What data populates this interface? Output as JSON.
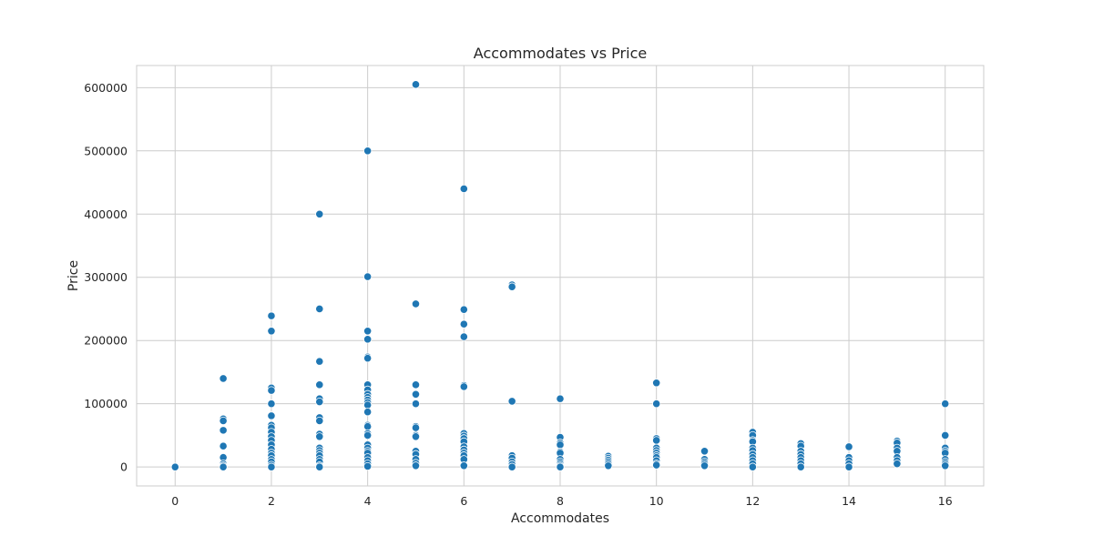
{
  "chart_data": {
    "type": "scatter",
    "title": "Accommodates vs Price",
    "xlabel": "Accommodates",
    "ylabel": "Price",
    "xlim": [
      -0.8,
      16.8
    ],
    "ylim": [
      -30000,
      635000
    ],
    "xticks": [
      0,
      2,
      4,
      6,
      8,
      10,
      12,
      14,
      16
    ],
    "yticks": [
      0,
      100000,
      200000,
      300000,
      400000,
      500000,
      600000
    ],
    "grid": true,
    "point_color": "#1f77b4",
    "series": [
      {
        "points": [
          {
            "x": 0,
            "y": 0
          },
          {
            "x": 1,
            "y": 140000
          },
          {
            "x": 1,
            "y": 76000
          },
          {
            "x": 1,
            "y": 73000
          },
          {
            "x": 1,
            "y": 58000
          },
          {
            "x": 1,
            "y": 33000
          },
          {
            "x": 1,
            "y": 16000
          },
          {
            "x": 1,
            "y": 15000
          },
          {
            "x": 1,
            "y": 5000
          },
          {
            "x": 1,
            "y": 2000
          },
          {
            "x": 1,
            "y": 0
          },
          {
            "x": 2,
            "y": 239000
          },
          {
            "x": 2,
            "y": 215000
          },
          {
            "x": 2,
            "y": 125000
          },
          {
            "x": 2,
            "y": 121000
          },
          {
            "x": 2,
            "y": 100000
          },
          {
            "x": 2,
            "y": 81000
          },
          {
            "x": 2,
            "y": 66000
          },
          {
            "x": 2,
            "y": 62000
          },
          {
            "x": 2,
            "y": 55000
          },
          {
            "x": 2,
            "y": 48000
          },
          {
            "x": 2,
            "y": 42000
          },
          {
            "x": 2,
            "y": 35000
          },
          {
            "x": 2,
            "y": 28000
          },
          {
            "x": 2,
            "y": 22000
          },
          {
            "x": 2,
            "y": 18000
          },
          {
            "x": 2,
            "y": 12000
          },
          {
            "x": 2,
            "y": 8000
          },
          {
            "x": 2,
            "y": 3000
          },
          {
            "x": 2,
            "y": 0
          },
          {
            "x": 3,
            "y": 400000
          },
          {
            "x": 3,
            "y": 250000
          },
          {
            "x": 3,
            "y": 167000
          },
          {
            "x": 3,
            "y": 130000
          },
          {
            "x": 3,
            "y": 108000
          },
          {
            "x": 3,
            "y": 103000
          },
          {
            "x": 3,
            "y": 78000
          },
          {
            "x": 3,
            "y": 73000
          },
          {
            "x": 3,
            "y": 52000
          },
          {
            "x": 3,
            "y": 48000
          },
          {
            "x": 3,
            "y": 30000
          },
          {
            "x": 3,
            "y": 26000
          },
          {
            "x": 3,
            "y": 22000
          },
          {
            "x": 3,
            "y": 18000
          },
          {
            "x": 3,
            "y": 12000
          },
          {
            "x": 3,
            "y": 8000
          },
          {
            "x": 3,
            "y": 2000
          },
          {
            "x": 3,
            "y": 0
          },
          {
            "x": 4,
            "y": 500000
          },
          {
            "x": 4,
            "y": 301000
          },
          {
            "x": 4,
            "y": 215000
          },
          {
            "x": 4,
            "y": 202000
          },
          {
            "x": 4,
            "y": 174000
          },
          {
            "x": 4,
            "y": 172000
          },
          {
            "x": 4,
            "y": 130000
          },
          {
            "x": 4,
            "y": 122000
          },
          {
            "x": 4,
            "y": 115000
          },
          {
            "x": 4,
            "y": 110000
          },
          {
            "x": 4,
            "y": 106000
          },
          {
            "x": 4,
            "y": 102000
          },
          {
            "x": 4,
            "y": 98000
          },
          {
            "x": 4,
            "y": 87000
          },
          {
            "x": 4,
            "y": 66000
          },
          {
            "x": 4,
            "y": 64000
          },
          {
            "x": 4,
            "y": 53000
          },
          {
            "x": 4,
            "y": 50000
          },
          {
            "x": 4,
            "y": 35000
          },
          {
            "x": 4,
            "y": 30000
          },
          {
            "x": 4,
            "y": 25000
          },
          {
            "x": 4,
            "y": 22000
          },
          {
            "x": 4,
            "y": 15000
          },
          {
            "x": 4,
            "y": 10000
          },
          {
            "x": 4,
            "y": 5000
          },
          {
            "x": 4,
            "y": 1000
          },
          {
            "x": 5,
            "y": 605000
          },
          {
            "x": 5,
            "y": 258000
          },
          {
            "x": 5,
            "y": 130000
          },
          {
            "x": 5,
            "y": 115000
          },
          {
            "x": 5,
            "y": 100000
          },
          {
            "x": 5,
            "y": 64000
          },
          {
            "x": 5,
            "y": 62000
          },
          {
            "x": 5,
            "y": 50000
          },
          {
            "x": 5,
            "y": 48000
          },
          {
            "x": 5,
            "y": 25000
          },
          {
            "x": 5,
            "y": 20000
          },
          {
            "x": 5,
            "y": 12000
          },
          {
            "x": 5,
            "y": 6000
          },
          {
            "x": 5,
            "y": 2000
          },
          {
            "x": 6,
            "y": 440000
          },
          {
            "x": 6,
            "y": 249000
          },
          {
            "x": 6,
            "y": 226000
          },
          {
            "x": 6,
            "y": 206000
          },
          {
            "x": 6,
            "y": 129000
          },
          {
            "x": 6,
            "y": 127000
          },
          {
            "x": 6,
            "y": 53000
          },
          {
            "x": 6,
            "y": 49000
          },
          {
            "x": 6,
            "y": 45000
          },
          {
            "x": 6,
            "y": 40000
          },
          {
            "x": 6,
            "y": 32000
          },
          {
            "x": 6,
            "y": 27000
          },
          {
            "x": 6,
            "y": 22000
          },
          {
            "x": 6,
            "y": 18000
          },
          {
            "x": 6,
            "y": 12000
          },
          {
            "x": 6,
            "y": 2000
          },
          {
            "x": 7,
            "y": 288000
          },
          {
            "x": 7,
            "y": 285000
          },
          {
            "x": 7,
            "y": 104000
          },
          {
            "x": 7,
            "y": 18000
          },
          {
            "x": 7,
            "y": 14000
          },
          {
            "x": 7,
            "y": 8000
          },
          {
            "x": 7,
            "y": 4000
          },
          {
            "x": 7,
            "y": 0
          },
          {
            "x": 8,
            "y": 108000
          },
          {
            "x": 8,
            "y": 47000
          },
          {
            "x": 8,
            "y": 38000
          },
          {
            "x": 8,
            "y": 35000
          },
          {
            "x": 8,
            "y": 24000
          },
          {
            "x": 8,
            "y": 22000
          },
          {
            "x": 8,
            "y": 12000
          },
          {
            "x": 8,
            "y": 8000
          },
          {
            "x": 8,
            "y": 5000
          },
          {
            "x": 8,
            "y": 2000
          },
          {
            "x": 8,
            "y": 0
          },
          {
            "x": 9,
            "y": 17000
          },
          {
            "x": 9,
            "y": 14000
          },
          {
            "x": 9,
            "y": 11000
          },
          {
            "x": 9,
            "y": 8000
          },
          {
            "x": 9,
            "y": 5000
          },
          {
            "x": 9,
            "y": 2000
          },
          {
            "x": 10,
            "y": 133000
          },
          {
            "x": 10,
            "y": 100000
          },
          {
            "x": 10,
            "y": 45000
          },
          {
            "x": 10,
            "y": 42000
          },
          {
            "x": 10,
            "y": 30000
          },
          {
            "x": 10,
            "y": 26000
          },
          {
            "x": 10,
            "y": 22000
          },
          {
            "x": 10,
            "y": 18000
          },
          {
            "x": 10,
            "y": 15000
          },
          {
            "x": 10,
            "y": 10000
          },
          {
            "x": 10,
            "y": 5000
          },
          {
            "x": 10,
            "y": 3000
          },
          {
            "x": 11,
            "y": 25000
          },
          {
            "x": 11,
            "y": 12000
          },
          {
            "x": 11,
            "y": 8000
          },
          {
            "x": 11,
            "y": 5000
          },
          {
            "x": 11,
            "y": 2000
          },
          {
            "x": 12,
            "y": 55000
          },
          {
            "x": 12,
            "y": 50000
          },
          {
            "x": 12,
            "y": 42000
          },
          {
            "x": 12,
            "y": 40000
          },
          {
            "x": 12,
            "y": 30000
          },
          {
            "x": 12,
            "y": 26000
          },
          {
            "x": 12,
            "y": 20000
          },
          {
            "x": 12,
            "y": 15000
          },
          {
            "x": 12,
            "y": 10000
          },
          {
            "x": 12,
            "y": 5000
          },
          {
            "x": 12,
            "y": 0
          },
          {
            "x": 13,
            "y": 37000
          },
          {
            "x": 13,
            "y": 33000
          },
          {
            "x": 13,
            "y": 25000
          },
          {
            "x": 13,
            "y": 20000
          },
          {
            "x": 13,
            "y": 15000
          },
          {
            "x": 13,
            "y": 10000
          },
          {
            "x": 13,
            "y": 5000
          },
          {
            "x": 13,
            "y": 0
          },
          {
            "x": 14,
            "y": 32000
          },
          {
            "x": 14,
            "y": 15000
          },
          {
            "x": 14,
            "y": 10000
          },
          {
            "x": 14,
            "y": 5000
          },
          {
            "x": 14,
            "y": 0
          },
          {
            "x": 15,
            "y": 41000
          },
          {
            "x": 15,
            "y": 38000
          },
          {
            "x": 15,
            "y": 30000
          },
          {
            "x": 15,
            "y": 25000
          },
          {
            "x": 15,
            "y": 15000
          },
          {
            "x": 15,
            "y": 10000
          },
          {
            "x": 15,
            "y": 5000
          },
          {
            "x": 16,
            "y": 100000
          },
          {
            "x": 16,
            "y": 50000
          },
          {
            "x": 16,
            "y": 30000
          },
          {
            "x": 16,
            "y": 25000
          },
          {
            "x": 16,
            "y": 22000
          },
          {
            "x": 16,
            "y": 12000
          },
          {
            "x": 16,
            "y": 8000
          },
          {
            "x": 16,
            "y": 5000
          },
          {
            "x": 16,
            "y": 2000
          }
        ]
      }
    ]
  }
}
